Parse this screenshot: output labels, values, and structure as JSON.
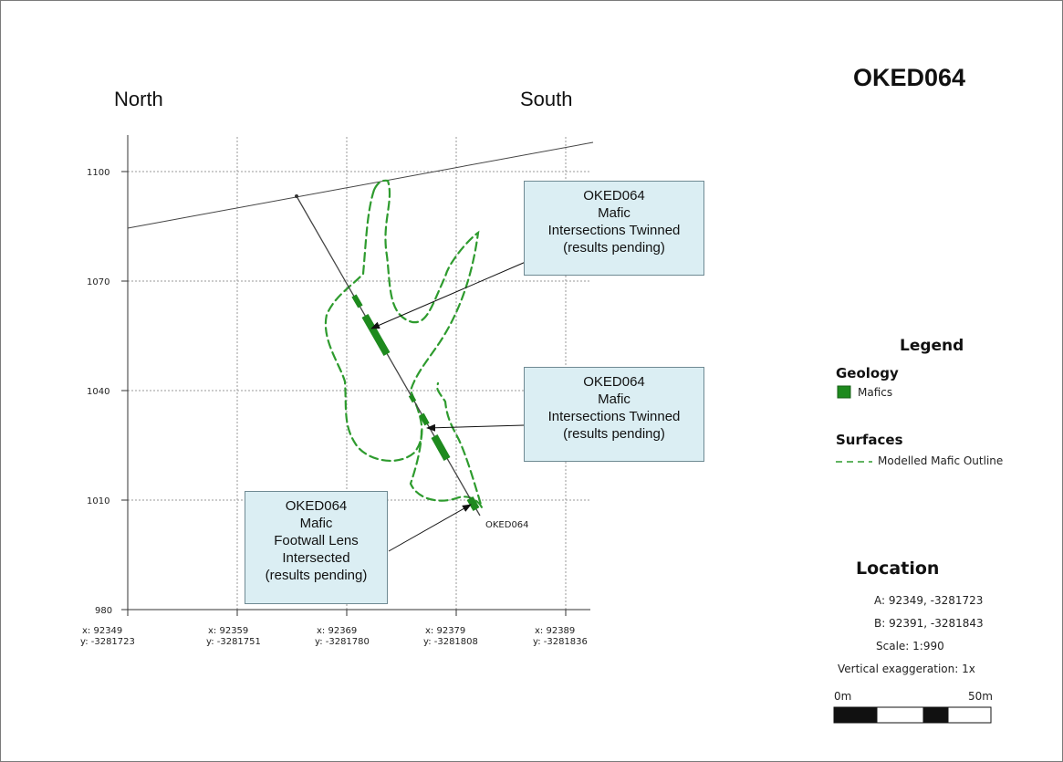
{
  "title": "OKED064",
  "directions": {
    "left": "North",
    "right": "South"
  },
  "elevation_ticks": [
    "1100",
    "1070",
    "1040",
    "1010",
    "980"
  ],
  "easting_ticks": [
    {
      "x": "x: 92349",
      "y": "y: -3281723"
    },
    {
      "x": "x: 92359",
      "y": "y: -3281751"
    },
    {
      "x": "x: 92369",
      "y": "y: -3281780"
    },
    {
      "x": "x: 92379",
      "y": "y: -3281808"
    },
    {
      "x": "x: 92389",
      "y": "y: -3281836"
    }
  ],
  "hole_label": "OKED064",
  "callouts": [
    {
      "lines": [
        "OKED064",
        "Mafic",
        "Intersections Twinned",
        "(results pending)"
      ]
    },
    {
      "lines": [
        "OKED064",
        "Mafic",
        "Intersections Twinned",
        "(results pending)"
      ]
    },
    {
      "lines": [
        "OKED064",
        "Mafic",
        "Footwall Lens",
        "Intersected",
        "(results pending)"
      ]
    }
  ],
  "legend": {
    "title": "Legend",
    "geology_heading": "Geology",
    "mafics_label": "Mafics",
    "surfaces_heading": "Surfaces",
    "outline_label": "Modelled Mafic Outline"
  },
  "location": {
    "title": "Location",
    "a": "A:  92349, -3281723",
    "b": "B:  92391, -3281843",
    "scale": "Scale: 1:990",
    "vertical_exaggeration": "Vertical exaggeration: 1x",
    "scalebar_start": "0m",
    "scalebar_end": "50m"
  },
  "colors": {
    "mafic_fill": "#1e8a1e",
    "outline": "#2e9b2e",
    "callout_fill": "#dbeef3",
    "grid": "#9a9a9a"
  }
}
